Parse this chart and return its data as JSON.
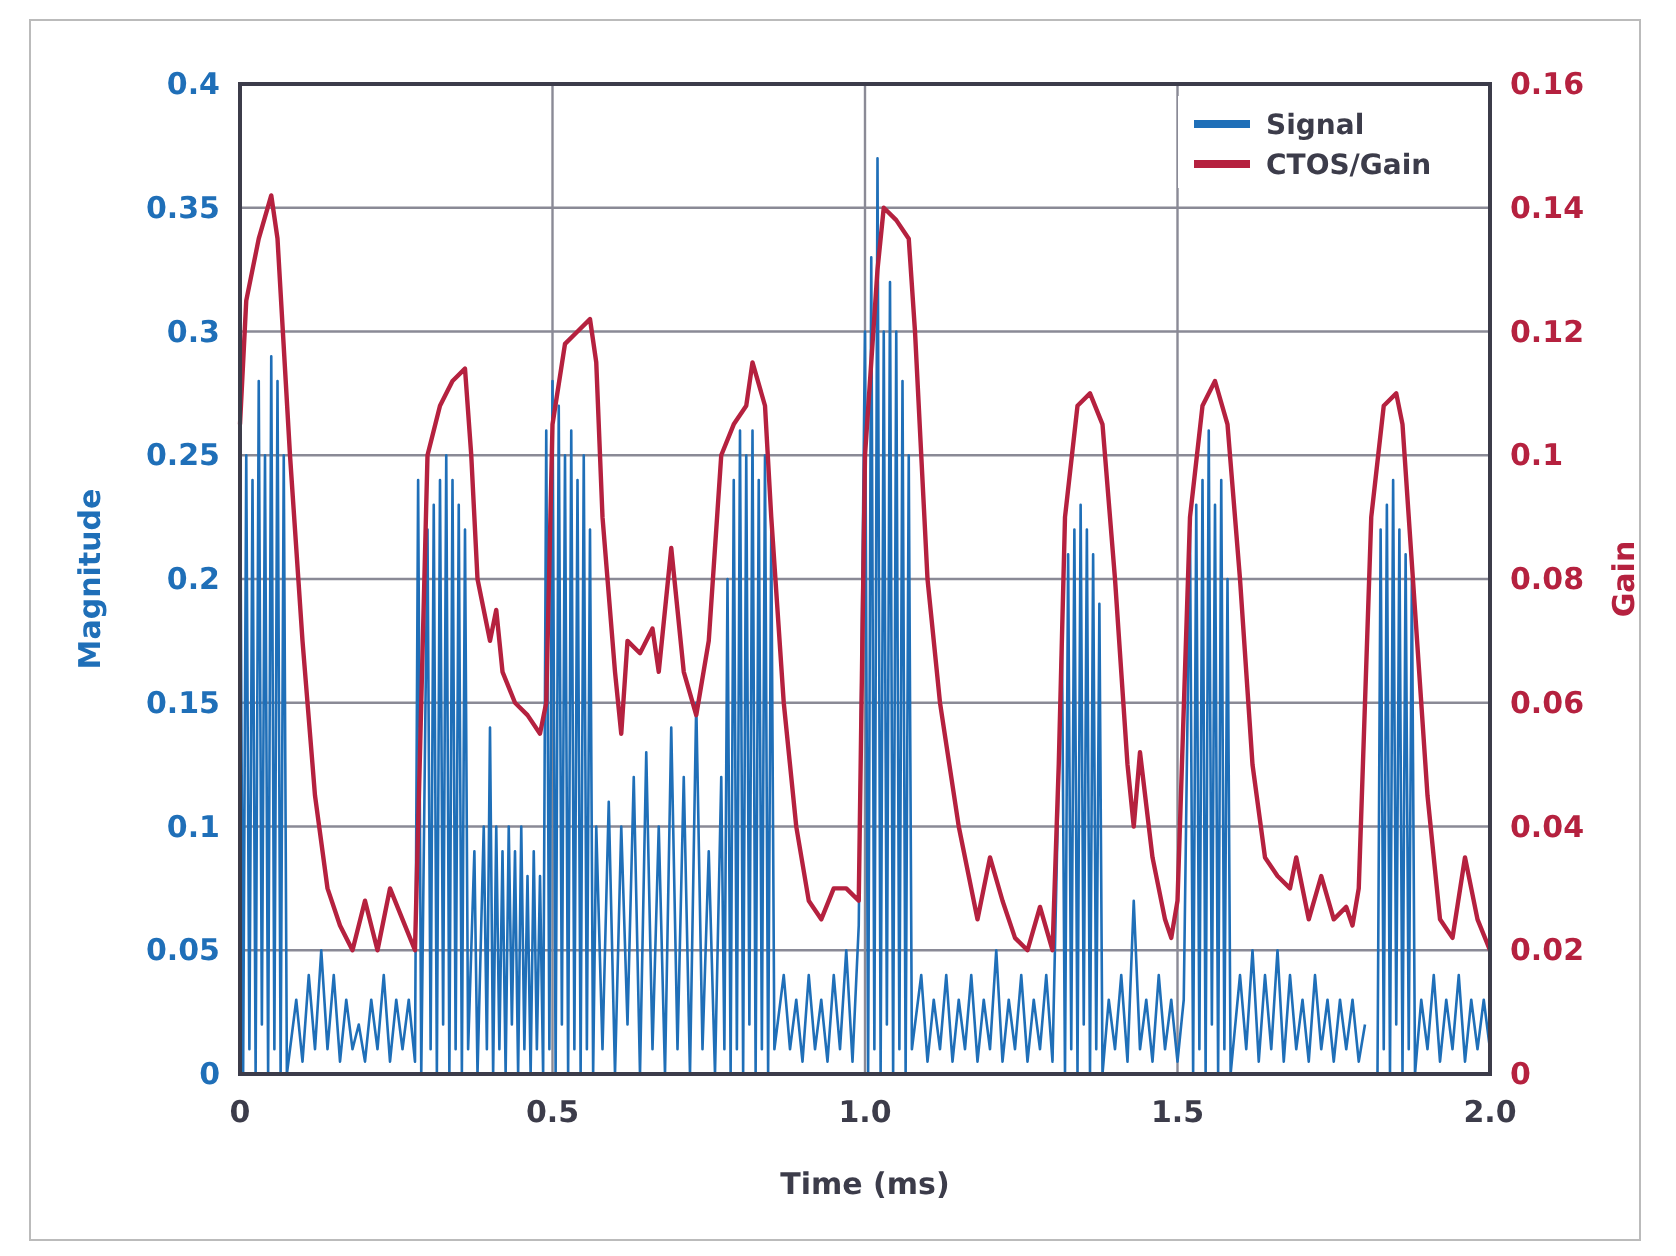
{
  "chart_data": {
    "type": "line",
    "xlabel": "Time (ms)",
    "ylabel": "Magnitude",
    "y2label": "Gain",
    "xlim": [
      0,
      2
    ],
    "xticks": [
      0,
      0.5,
      {
        "value": 1,
        "label": "1.0"
      },
      1.5,
      {
        "value": 2,
        "label": "2.0"
      }
    ],
    "ylim": [
      0,
      0.4
    ],
    "yticks": [
      0,
      0.05,
      0.1,
      0.15,
      0.2,
      0.25,
      0.3,
      0.35,
      0.4
    ],
    "y2lim": [
      0,
      0.16
    ],
    "y2ticks": [
      0,
      0.02,
      0.04,
      0.06,
      0.08,
      0.1,
      0.12,
      0.14,
      0.16
    ],
    "grid": true,
    "legend": "top right",
    "series": [
      {
        "name": "Signal",
        "color": "#1f6fb8",
        "x": [
          0,
          0.005,
          0.01,
          0.015,
          0.02,
          0.025,
          0.03,
          0.035,
          0.04,
          0.045,
          0.05,
          0.055,
          0.06,
          0.065,
          0.07,
          0.075,
          0.09,
          0.1,
          0.11,
          0.12,
          0.13,
          0.14,
          0.15,
          0.16,
          0.17,
          0.18,
          0.19,
          0.2,
          0.21,
          0.22,
          0.23,
          0.24,
          0.25,
          0.26,
          0.27,
          0.28,
          0.285,
          0.29,
          0.3,
          0.305,
          0.31,
          0.315,
          0.32,
          0.325,
          0.33,
          0.335,
          0.34,
          0.345,
          0.35,
          0.355,
          0.36,
          0.365,
          0.375,
          0.38,
          0.39,
          0.395,
          0.4,
          0.405,
          0.41,
          0.415,
          0.42,
          0.425,
          0.43,
          0.435,
          0.44,
          0.445,
          0.45,
          0.455,
          0.46,
          0.465,
          0.47,
          0.475,
          0.48,
          0.485,
          0.49,
          0.495,
          0.5,
          0.505,
          0.51,
          0.515,
          0.52,
          0.525,
          0.53,
          0.535,
          0.54,
          0.545,
          0.55,
          0.555,
          0.56,
          0.565,
          0.57,
          0.58,
          0.59,
          0.6,
          0.61,
          0.62,
          0.63,
          0.64,
          0.65,
          0.66,
          0.67,
          0.68,
          0.69,
          0.7,
          0.71,
          0.72,
          0.73,
          0.74,
          0.75,
          0.76,
          0.77,
          0.775,
          0.78,
          0.785,
          0.79,
          0.795,
          0.8,
          0.805,
          0.81,
          0.815,
          0.82,
          0.825,
          0.83,
          0.835,
          0.84,
          0.845,
          0.85,
          0.855,
          0.87,
          0.88,
          0.89,
          0.9,
          0.91,
          0.92,
          0.93,
          0.94,
          0.95,
          0.96,
          0.97,
          0.98,
          0.99,
          1,
          1.005,
          1.01,
          1.015,
          1.02,
          1.025,
          1.03,
          1.035,
          1.04,
          1.045,
          1.05,
          1.055,
          1.06,
          1.065,
          1.07,
          1.075,
          1.09,
          1.1,
          1.11,
          1.12,
          1.13,
          1.14,
          1.15,
          1.16,
          1.17,
          1.18,
          1.19,
          1.2,
          1.21,
          1.22,
          1.23,
          1.24,
          1.25,
          1.26,
          1.27,
          1.28,
          1.29,
          1.3,
          1.315,
          1.32,
          1.325,
          1.33,
          1.335,
          1.34,
          1.345,
          1.35,
          1.355,
          1.36,
          1.365,
          1.37,
          1.375,
          1.38,
          1.39,
          1.4,
          1.41,
          1.42,
          1.43,
          1.44,
          1.45,
          1.46,
          1.47,
          1.48,
          1.49,
          1.5,
          1.51,
          1.52,
          1.525,
          1.53,
          1.535,
          1.54,
          1.545,
          1.55,
          1.555,
          1.56,
          1.565,
          1.57,
          1.575,
          1.58,
          1.585,
          1.6,
          1.61,
          1.62,
          1.63,
          1.64,
          1.65,
          1.66,
          1.67,
          1.68,
          1.69,
          1.7,
          1.71,
          1.72,
          1.73,
          1.74,
          1.75,
          1.76,
          1.77,
          1.78,
          1.79,
          1.8,
          1.815,
          1.82,
          1.825,
          1.83,
          1.835,
          1.84,
          1.845,
          1.85,
          1.855,
          1.86,
          1.865,
          1.87,
          1.875,
          1.88,
          1.89,
          1.9,
          1.91,
          1.92,
          1.93,
          1.94,
          1.95,
          1.96,
          1.97,
          1.98,
          1.99,
          2
        ],
        "values": [
          0.26,
          0,
          0.25,
          0.01,
          0.24,
          0,
          0.28,
          0.02,
          0.25,
          0,
          0.29,
          0.01,
          0.28,
          0,
          0.25,
          0,
          0.03,
          0.005,
          0.04,
          0.01,
          0.05,
          0.01,
          0.04,
          0.005,
          0.03,
          0.01,
          0.02,
          0.005,
          0.03,
          0.01,
          0.04,
          0.005,
          0.03,
          0.01,
          0.03,
          0.005,
          0.24,
          0,
          0.22,
          0.01,
          0.23,
          0,
          0.24,
          0.02,
          0.25,
          0,
          0.24,
          0.01,
          0.23,
          0,
          0.22,
          0.01,
          0.09,
          0,
          0.1,
          0.01,
          0.14,
          0,
          0.1,
          0.01,
          0.09,
          0,
          0.1,
          0.02,
          0.09,
          0,
          0.1,
          0.01,
          0.08,
          0,
          0.09,
          0.01,
          0.08,
          0,
          0.26,
          0.01,
          0.28,
          0,
          0.27,
          0.02,
          0.25,
          0,
          0.26,
          0.01,
          0.24,
          0,
          0.25,
          0.01,
          0.22,
          0,
          0.1,
          0.01,
          0.11,
          0,
          0.1,
          0.02,
          0.12,
          0,
          0.13,
          0.01,
          0.1,
          0,
          0.14,
          0.01,
          0.12,
          0,
          0.15,
          0.01,
          0.09,
          0,
          0.12,
          0.01,
          0.2,
          0,
          0.24,
          0.01,
          0.26,
          0,
          0.25,
          0.02,
          0.26,
          0,
          0.24,
          0.01,
          0.25,
          0,
          0.22,
          0.01,
          0.04,
          0.01,
          0.03,
          0.005,
          0.04,
          0.01,
          0.03,
          0.005,
          0.04,
          0.01,
          0.05,
          0.005,
          0.06,
          0.3,
          0,
          0.33,
          0.01,
          0.37,
          0,
          0.3,
          0.02,
          0.32,
          0,
          0.3,
          0.01,
          0.28,
          0,
          0.25,
          0.01,
          0.04,
          0.005,
          0.03,
          0.01,
          0.04,
          0.005,
          0.03,
          0.01,
          0.04,
          0.005,
          0.03,
          0.01,
          0.05,
          0.005,
          0.03,
          0.01,
          0.04,
          0.005,
          0.03,
          0.01,
          0.04,
          0.005,
          0.18,
          0,
          0.21,
          0.01,
          0.22,
          0,
          0.23,
          0.02,
          0.22,
          0,
          0.21,
          0.01,
          0.19,
          0,
          0.03,
          0.01,
          0.04,
          0.005,
          0.07,
          0.01,
          0.03,
          0.005,
          0.04,
          0.01,
          0.03,
          0.005,
          0.03,
          0.22,
          0,
          0.23,
          0.01,
          0.24,
          0,
          0.26,
          0.02,
          0.23,
          0,
          0.24,
          0.01,
          0.2,
          0,
          0.04,
          0.01,
          0.05,
          0.005,
          0.04,
          0.01,
          0.05,
          0.005,
          0.04,
          0.01,
          0.03,
          0.005,
          0.04,
          0.01,
          0.03,
          0.005,
          0.03,
          0.01,
          0.03,
          0.005,
          0.02,
          null,
          0,
          0.22,
          0.01,
          0.23,
          0,
          0.24,
          0.02,
          0.22,
          0,
          0.21,
          0.01,
          0.2,
          0,
          0.03,
          0.01,
          0.04,
          0.005,
          0.03,
          0.01,
          0.04,
          0.005,
          0.03,
          0.01,
          0.03,
          0.01
        ]
      },
      {
        "name": "CTOS/Gain",
        "color": "#b5213f",
        "axis": "y2",
        "x": [
          0,
          0.01,
          0.02,
          0.03,
          0.05,
          0.06,
          0.08,
          0.1,
          0.12,
          0.14,
          0.16,
          0.18,
          0.2,
          0.22,
          0.24,
          0.26,
          0.28,
          0.29,
          0.3,
          0.32,
          0.34,
          0.36,
          0.37,
          0.38,
          0.4,
          0.41,
          0.42,
          0.44,
          0.46,
          0.48,
          0.49,
          0.5,
          0.52,
          0.54,
          0.56,
          0.57,
          0.58,
          0.6,
          0.61,
          0.62,
          0.64,
          0.66,
          0.67,
          0.69,
          0.71,
          0.73,
          0.75,
          0.77,
          0.79,
          0.81,
          0.82,
          0.84,
          0.85,
          0.87,
          0.89,
          0.91,
          0.93,
          0.95,
          0.97,
          0.99,
          1,
          1.02,
          1.03,
          1.05,
          1.07,
          1.08,
          1.1,
          1.12,
          1.15,
          1.18,
          1.2,
          1.22,
          1.24,
          1.26,
          1.28,
          1.3,
          1.31,
          1.32,
          1.34,
          1.36,
          1.38,
          1.4,
          1.42,
          1.43,
          1.44,
          1.46,
          1.48,
          1.49,
          1.5,
          1.52,
          1.54,
          1.56,
          1.58,
          1.6,
          1.62,
          1.64,
          1.66,
          1.68,
          1.69,
          1.71,
          1.73,
          1.75,
          1.77,
          1.78,
          1.79,
          1.81,
          1.83,
          1.85,
          1.86,
          1.88,
          1.9,
          1.92,
          1.94,
          1.96,
          1.98,
          2
        ],
        "values": [
          0.105,
          0.125,
          0.13,
          0.135,
          0.142,
          0.135,
          0.1,
          0.07,
          0.045,
          0.03,
          0.024,
          0.02,
          0.028,
          0.02,
          0.03,
          0.025,
          0.02,
          0.06,
          0.1,
          0.108,
          0.112,
          0.114,
          0.1,
          0.08,
          0.07,
          0.075,
          0.065,
          0.06,
          0.058,
          0.055,
          0.06,
          0.105,
          0.118,
          0.12,
          0.122,
          0.115,
          0.09,
          0.065,
          0.055,
          0.07,
          0.068,
          0.072,
          0.065,
          0.085,
          0.065,
          0.058,
          0.07,
          0.1,
          0.105,
          0.108,
          0.115,
          0.108,
          0.09,
          0.06,
          0.04,
          0.028,
          0.025,
          0.03,
          0.03,
          0.028,
          0.1,
          0.13,
          0.14,
          0.138,
          0.135,
          0.12,
          0.08,
          0.06,
          0.04,
          0.025,
          0.035,
          0.028,
          0.022,
          0.02,
          0.027,
          0.02,
          0.05,
          0.09,
          0.108,
          0.11,
          0.105,
          0.08,
          0.05,
          0.04,
          0.052,
          0.035,
          0.025,
          0.022,
          0.028,
          0.09,
          0.108,
          0.112,
          0.105,
          0.08,
          0.05,
          0.035,
          0.032,
          0.03,
          0.035,
          0.025,
          0.032,
          0.025,
          0.027,
          0.024,
          0.03,
          0.09,
          0.108,
          0.11,
          0.105,
          0.075,
          0.045,
          0.025,
          0.022,
          0.035,
          0.025,
          0.02
        ]
      }
    ]
  }
}
